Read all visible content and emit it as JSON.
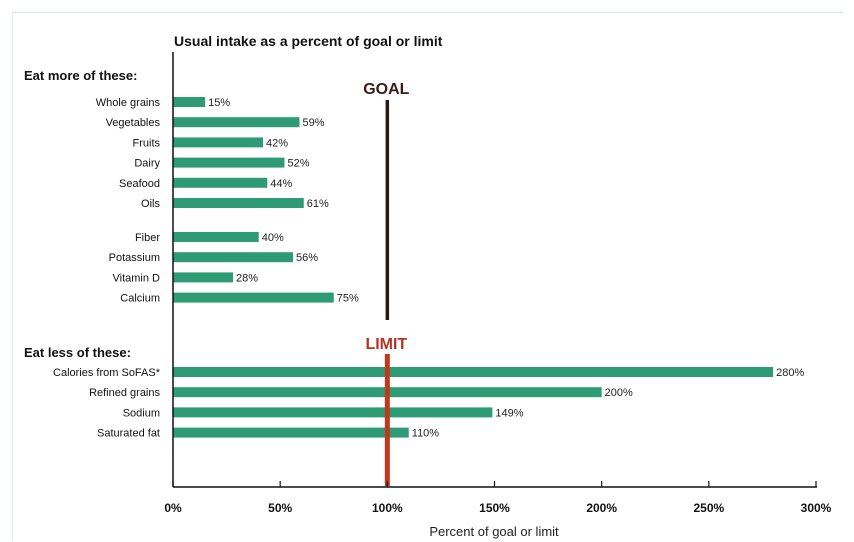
{
  "chart_data": {
    "type": "bar",
    "orientation": "horizontal",
    "title": "Usual intake as a percent of goal or limit",
    "xlabel": "Percent of goal or limit",
    "xlim": [
      0,
      300
    ],
    "x_ticks": [
      "0%",
      "50%",
      "100%",
      "150%",
      "200%",
      "250%",
      "300%"
    ],
    "grid": false,
    "bar_color": "#2e9b75",
    "groups": [
      {
        "label": "Eat more of these:",
        "reference": {
          "label": "GOAL",
          "value": 100,
          "color": "#2a1710"
        },
        "blocks": [
          [
            {
              "category": "Whole grains",
              "value": 15,
              "label": "15%"
            },
            {
              "category": "Vegetables",
              "value": 59,
              "label": "59%"
            },
            {
              "category": "Fruits",
              "value": 42,
              "label": "42%"
            },
            {
              "category": "Dairy",
              "value": 52,
              "label": "52%"
            },
            {
              "category": "Seafood",
              "value": 44,
              "label": "44%"
            },
            {
              "category": "Oils",
              "value": 61,
              "label": "61%"
            }
          ],
          [
            {
              "category": "Fiber",
              "value": 40,
              "label": "40%"
            },
            {
              "category": "Potassium",
              "value": 56,
              "label": "56%"
            },
            {
              "category": "Vitamin D",
              "value": 28,
              "label": "28%"
            },
            {
              "category": "Calcium",
              "value": 75,
              "label": "75%"
            }
          ]
        ]
      },
      {
        "label": "Eat less of these:",
        "reference": {
          "label": "LIMIT",
          "value": 100,
          "color": "#c0391f"
        },
        "blocks": [
          [
            {
              "category": "Calories from SoFAS*",
              "value": 280,
              "label": "280%"
            },
            {
              "category": "Refined grains",
              "value": 200,
              "label": "200%"
            },
            {
              "category": "Sodium",
              "value": 149,
              "label": "149%"
            },
            {
              "category": "Saturated fat",
              "value": 110,
              "label": "110%"
            }
          ]
        ]
      }
    ]
  }
}
